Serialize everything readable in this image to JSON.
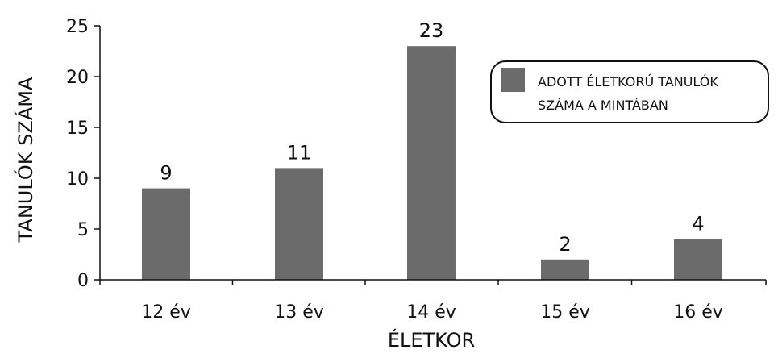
{
  "chart_data": {
    "type": "bar",
    "categories": [
      "12 év",
      "13 év",
      "14 év",
      "15 év",
      "16 év"
    ],
    "values": [
      9,
      11,
      23,
      2,
      4
    ],
    "xlabel": "ÉLETKOR",
    "ylabel": "TANULÓK SZÁMA",
    "ylim": [
      0,
      25
    ],
    "yticks": [
      0,
      5,
      10,
      15,
      20,
      25
    ],
    "grid": false,
    "legend": {
      "position": "top-right",
      "line1": "ADOTT ÉLETKORÚ TANULÓK",
      "line2": "SZÁMA A MINTÁBAN"
    },
    "bar_color": "#6b6b6b"
  }
}
